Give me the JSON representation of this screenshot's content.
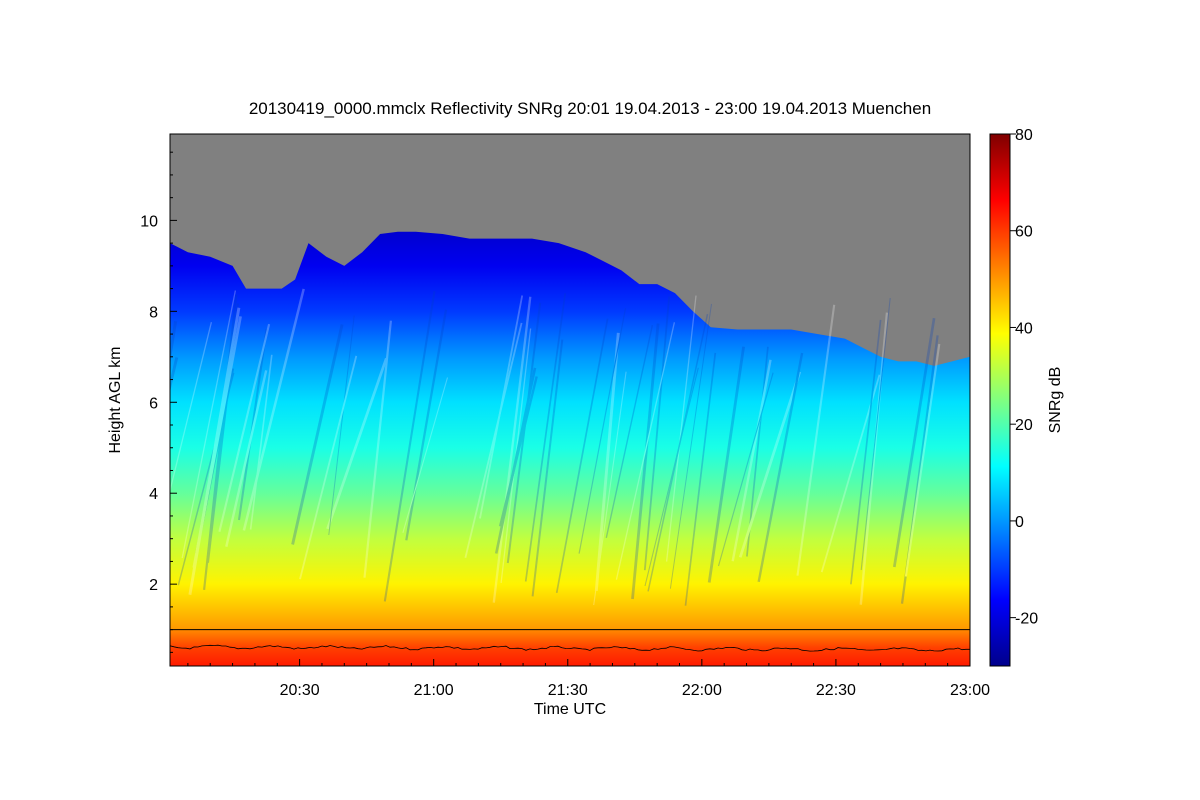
{
  "chart_data": {
    "type": "heatmap",
    "title": "20130419_0000.mmclx Reflectivity SNRg   20:01 19.04.2013 - 23:00 19.04.2013 Muenchen",
    "xlabel": "Time UTC",
    "ylabel": "Height AGL km",
    "x_range_minutes": [
      1201,
      1380
    ],
    "y_range_km": [
      0.2,
      11.9
    ],
    "x_ticks": [
      {
        "minute": 1230,
        "label": "20:30"
      },
      {
        "minute": 1260,
        "label": "21:00"
      },
      {
        "minute": 1290,
        "label": "21:30"
      },
      {
        "minute": 1320,
        "label": "22:00"
      },
      {
        "minute": 1350,
        "label": "22:30"
      },
      {
        "minute": 1380,
        "label": "23:00"
      }
    ],
    "y_ticks": [
      {
        "value": 2,
        "label": "2"
      },
      {
        "value": 4,
        "label": "4"
      },
      {
        "value": 6,
        "label": "6"
      },
      {
        "value": 8,
        "label": "8"
      },
      {
        "value": 10,
        "label": "10"
      }
    ],
    "colorbar": {
      "label": "SNRg dB",
      "range": [
        -30,
        80
      ],
      "ticks": [
        {
          "value": -20,
          "label": "-20"
        },
        {
          "value": 0,
          "label": "0"
        },
        {
          "value": 20,
          "label": "20"
        },
        {
          "value": 40,
          "label": "40"
        },
        {
          "value": 60,
          "label": "60"
        },
        {
          "value": 80,
          "label": "80"
        }
      ],
      "stops": [
        "#00008b",
        "#0000ff",
        "#0080ff",
        "#00ffff",
        "#80ff80",
        "#ffff00",
        "#ff8000",
        "#ff0000",
        "#800000"
      ]
    },
    "no_signal_color": "#808080",
    "near_field_height_km": 1.0,
    "echo_top_km": [
      [
        1201,
        9.5
      ],
      [
        1205,
        9.3
      ],
      [
        1210,
        9.2
      ],
      [
        1215,
        9.0
      ],
      [
        1218,
        8.5
      ],
      [
        1222,
        8.5
      ],
      [
        1226,
        8.5
      ],
      [
        1229,
        8.7
      ],
      [
        1232,
        9.5
      ],
      [
        1236,
        9.2
      ],
      [
        1240,
        9.0
      ],
      [
        1244,
        9.3
      ],
      [
        1248,
        9.7
      ],
      [
        1252,
        9.75
      ],
      [
        1256,
        9.75
      ],
      [
        1262,
        9.7
      ],
      [
        1268,
        9.6
      ],
      [
        1275,
        9.6
      ],
      [
        1282,
        9.6
      ],
      [
        1288,
        9.5
      ],
      [
        1294,
        9.3
      ],
      [
        1298,
        9.1
      ],
      [
        1302,
        8.9
      ],
      [
        1306,
        8.6
      ],
      [
        1310,
        8.6
      ],
      [
        1314,
        8.4
      ],
      [
        1318,
        8.0
      ],
      [
        1322,
        7.65
      ],
      [
        1328,
        7.6
      ],
      [
        1334,
        7.6
      ],
      [
        1340,
        7.6
      ],
      [
        1346,
        7.5
      ],
      [
        1352,
        7.4
      ],
      [
        1356,
        7.2
      ],
      [
        1360,
        7.0
      ],
      [
        1364,
        6.9
      ],
      [
        1368,
        6.9
      ],
      [
        1372,
        6.8
      ],
      [
        1376,
        6.9
      ],
      [
        1380,
        7.0
      ]
    ],
    "snr_profile_db": [
      {
        "height_km": 0.5,
        "snr": 55
      },
      {
        "height_km": 1.2,
        "snr": 48
      },
      {
        "height_km": 2.0,
        "snr": 40
      },
      {
        "height_km": 3.0,
        "snr": 32
      },
      {
        "height_km": 4.0,
        "snr": 22
      },
      {
        "height_km": 5.0,
        "snr": 14
      },
      {
        "height_km": 6.0,
        "snr": 8
      },
      {
        "height_km": 7.0,
        "snr": 0
      },
      {
        "height_km": 8.0,
        "snr": -10
      },
      {
        "height_km": 9.0,
        "snr": -18
      },
      {
        "height_km": 9.8,
        "snr": -22
      }
    ]
  }
}
